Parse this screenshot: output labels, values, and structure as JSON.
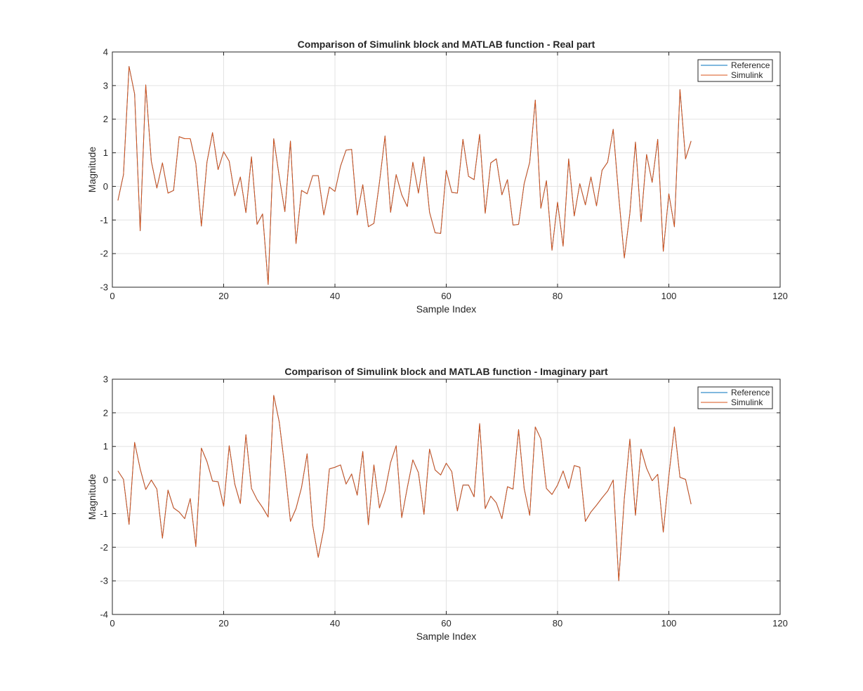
{
  "chart_data": [
    {
      "type": "line",
      "title": "Comparison of Simulink block and MATLAB function - Real part",
      "xlabel": "Sample Index",
      "ylabel": "Magnitude",
      "xlim": [
        0,
        120
      ],
      "ylim": [
        -3,
        4
      ],
      "xticks": [
        0,
        20,
        40,
        60,
        80,
        100,
        120
      ],
      "yticks": [
        -3,
        -2,
        -1,
        0,
        1,
        2,
        3,
        4
      ],
      "grid": true,
      "legend_position": "top-right",
      "x": [
        1,
        2,
        3,
        4,
        5,
        6,
        7,
        8,
        9,
        10,
        11,
        12,
        13,
        14,
        15,
        16,
        17,
        18,
        19,
        20,
        21,
        22,
        23,
        24,
        25,
        26,
        27,
        28,
        29,
        30,
        31,
        32,
        33,
        34,
        35,
        36,
        37,
        38,
        39,
        40,
        41,
        42,
        43,
        44,
        45,
        46,
        47,
        48,
        49,
        50,
        51,
        52,
        53,
        54,
        55,
        56,
        57,
        58,
        59,
        60,
        61,
        62,
        63,
        64,
        65,
        66,
        67,
        68,
        69,
        70,
        71,
        72,
        73,
        74,
        75,
        76,
        77,
        78,
        79,
        80,
        81,
        82,
        83,
        84,
        85,
        86,
        87,
        88,
        89,
        90,
        91,
        92,
        93,
        94,
        95,
        96,
        97,
        98,
        99,
        100,
        101,
        102,
        103,
        104
      ],
      "series": [
        {
          "name": "Reference",
          "color": "#0072bd",
          "values": [
            -0.42,
            0.35,
            3.57,
            2.75,
            -1.32,
            3.02,
            0.75,
            -0.05,
            0.7,
            -0.2,
            -0.12,
            1.48,
            1.42,
            1.42,
            0.68,
            -1.18,
            0.72,
            1.6,
            0.5,
            1.03,
            0.75,
            -0.28,
            0.28,
            -0.78,
            0.88,
            -1.13,
            -0.82,
            -2.92,
            1.42,
            0.28,
            -0.75,
            1.35,
            -1.7,
            -0.12,
            -0.22,
            0.32,
            0.32,
            -0.85,
            -0.02,
            -0.15,
            0.6,
            1.08,
            1.1,
            -0.85,
            0.05,
            -1.2,
            -1.1,
            0.12,
            1.5,
            -0.77,
            0.35,
            -0.25,
            -0.6,
            0.72,
            -0.2,
            0.88,
            -0.77,
            -1.38,
            -1.4,
            0.48,
            -0.18,
            -0.2,
            1.4,
            0.3,
            0.2,
            1.55,
            -0.8,
            0.7,
            0.82,
            -0.25,
            0.2,
            -1.15,
            -1.13,
            0.08,
            0.72,
            2.57,
            -0.65,
            0.17,
            -1.9,
            -0.47,
            -1.78,
            0.82,
            -0.88,
            0.08,
            -0.55,
            0.28,
            -0.58,
            0.48,
            0.72,
            1.7,
            -0.3,
            -2.13,
            -0.8,
            1.32,
            -1.05,
            0.95,
            0.12,
            1.4,
            -1.93,
            -0.22,
            -1.2,
            2.88,
            0.82,
            1.35
          ]
        },
        {
          "name": "Simulink",
          "color": "#d95319",
          "values": [
            -0.42,
            0.35,
            3.57,
            2.75,
            -1.32,
            3.02,
            0.75,
            -0.05,
            0.7,
            -0.2,
            -0.12,
            1.48,
            1.42,
            1.42,
            0.68,
            -1.18,
            0.72,
            1.6,
            0.5,
            1.03,
            0.75,
            -0.28,
            0.28,
            -0.78,
            0.88,
            -1.13,
            -0.82,
            -2.92,
            1.42,
            0.28,
            -0.75,
            1.35,
            -1.7,
            -0.12,
            -0.22,
            0.32,
            0.32,
            -0.85,
            -0.02,
            -0.15,
            0.6,
            1.08,
            1.1,
            -0.85,
            0.05,
            -1.2,
            -1.1,
            0.12,
            1.5,
            -0.77,
            0.35,
            -0.25,
            -0.6,
            0.72,
            -0.2,
            0.88,
            -0.77,
            -1.38,
            -1.4,
            0.48,
            -0.18,
            -0.2,
            1.4,
            0.3,
            0.2,
            1.55,
            -0.8,
            0.7,
            0.82,
            -0.25,
            0.2,
            -1.15,
            -1.13,
            0.08,
            0.72,
            2.57,
            -0.65,
            0.17,
            -1.9,
            -0.47,
            -1.78,
            0.82,
            -0.88,
            0.08,
            -0.55,
            0.28,
            -0.58,
            0.48,
            0.72,
            1.7,
            -0.3,
            -2.13,
            -0.8,
            1.32,
            -1.05,
            0.95,
            0.12,
            1.4,
            -1.93,
            -0.22,
            -1.2,
            2.88,
            0.82,
            1.35
          ]
        }
      ]
    },
    {
      "type": "line",
      "title": "Comparison of Simulink block and MATLAB function - Imaginary part",
      "xlabel": "Sample Index",
      "ylabel": "Magnitude",
      "xlim": [
        0,
        120
      ],
      "ylim": [
        -4,
        3
      ],
      "xticks": [
        0,
        20,
        40,
        60,
        80,
        100,
        120
      ],
      "yticks": [
        -4,
        -3,
        -2,
        -1,
        0,
        1,
        2,
        3
      ],
      "grid": true,
      "legend_position": "top-right",
      "x": [
        1,
        2,
        3,
        4,
        5,
        6,
        7,
        8,
        9,
        10,
        11,
        12,
        13,
        14,
        15,
        16,
        17,
        18,
        19,
        20,
        21,
        22,
        23,
        24,
        25,
        26,
        27,
        28,
        29,
        30,
        31,
        32,
        33,
        34,
        35,
        36,
        37,
        38,
        39,
        40,
        41,
        42,
        43,
        44,
        45,
        46,
        47,
        48,
        49,
        50,
        51,
        52,
        53,
        54,
        55,
        56,
        57,
        58,
        59,
        60,
        61,
        62,
        63,
        64,
        65,
        66,
        67,
        68,
        69,
        70,
        71,
        72,
        73,
        74,
        75,
        76,
        77,
        78,
        79,
        80,
        81,
        82,
        83,
        84,
        85,
        86,
        87,
        88,
        89,
        90,
        91,
        92,
        93,
        94,
        95,
        96,
        97,
        98,
        99,
        100,
        101,
        102,
        103,
        104
      ],
      "series": [
        {
          "name": "Reference",
          "color": "#0072bd",
          "values": [
            0.27,
            0.02,
            -1.32,
            1.12,
            0.33,
            -0.28,
            0.0,
            -0.27,
            -1.73,
            -0.3,
            -0.83,
            -0.95,
            -1.15,
            -0.55,
            -1.98,
            0.95,
            0.55,
            -0.03,
            -0.05,
            -0.78,
            1.02,
            -0.12,
            -0.7,
            1.35,
            -0.25,
            -0.58,
            -0.82,
            -1.1,
            2.52,
            1.72,
            0.35,
            -1.23,
            -0.85,
            -0.22,
            0.78,
            -1.35,
            -2.3,
            -1.45,
            0.33,
            0.38,
            0.45,
            -0.12,
            0.18,
            -0.45,
            0.85,
            -1.33,
            0.45,
            -0.83,
            -0.33,
            0.52,
            1.02,
            -1.12,
            -0.23,
            0.6,
            0.22,
            -1.02,
            0.92,
            0.3,
            0.15,
            0.5,
            0.25,
            -0.92,
            -0.15,
            -0.15,
            -0.5,
            1.68,
            -0.85,
            -0.48,
            -0.68,
            -1.15,
            -0.2,
            -0.27,
            1.5,
            -0.25,
            -1.05,
            1.58,
            1.22,
            -0.25,
            -0.43,
            -0.15,
            0.27,
            -0.25,
            0.43,
            0.38,
            -1.23,
            -0.95,
            -0.75,
            -0.53,
            -0.33,
            0.0,
            -3.0,
            -0.55,
            1.22,
            -1.05,
            0.92,
            0.35,
            -0.02,
            0.17,
            -1.55,
            0.12,
            1.58,
            0.08,
            0.02,
            -0.72
          ]
        },
        {
          "name": "Simulink",
          "color": "#d95319",
          "values": [
            0.27,
            0.02,
            -1.32,
            1.12,
            0.33,
            -0.28,
            0.0,
            -0.27,
            -1.73,
            -0.3,
            -0.83,
            -0.95,
            -1.15,
            -0.55,
            -1.98,
            0.95,
            0.55,
            -0.03,
            -0.05,
            -0.78,
            1.02,
            -0.12,
            -0.7,
            1.35,
            -0.25,
            -0.58,
            -0.82,
            -1.1,
            2.52,
            1.72,
            0.35,
            -1.23,
            -0.85,
            -0.22,
            0.78,
            -1.35,
            -2.3,
            -1.45,
            0.33,
            0.38,
            0.45,
            -0.12,
            0.18,
            -0.45,
            0.85,
            -1.33,
            0.45,
            -0.83,
            -0.33,
            0.52,
            1.02,
            -1.12,
            -0.23,
            0.6,
            0.22,
            -1.02,
            0.92,
            0.3,
            0.15,
            0.5,
            0.25,
            -0.92,
            -0.15,
            -0.15,
            -0.5,
            1.68,
            -0.85,
            -0.48,
            -0.68,
            -1.15,
            -0.2,
            -0.27,
            1.5,
            -0.25,
            -1.05,
            1.58,
            1.22,
            -0.25,
            -0.43,
            -0.15,
            0.27,
            -0.25,
            0.43,
            0.38,
            -1.23,
            -0.95,
            -0.75,
            -0.53,
            -0.33,
            0.0,
            -3.0,
            -0.55,
            1.22,
            -1.05,
            0.92,
            0.35,
            -0.02,
            0.17,
            -1.55,
            0.12,
            1.58,
            0.08,
            0.02,
            -0.72
          ]
        }
      ]
    }
  ]
}
